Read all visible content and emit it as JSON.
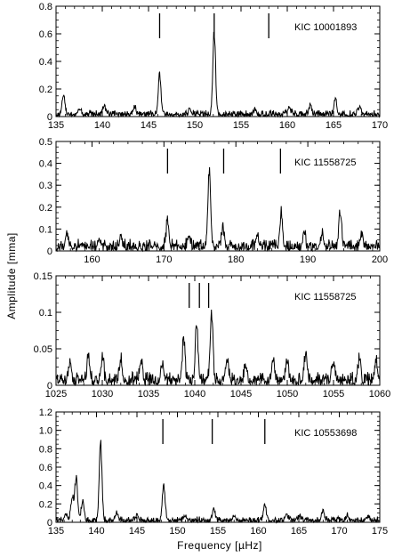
{
  "figure": {
    "ylabel": "Amplitude   [mma]",
    "xlabel": "Frequency [µHz]"
  },
  "chart_data": [
    {
      "type": "line",
      "label": "KIC 10001893",
      "xlim": [
        135,
        170
      ],
      "ylim": [
        0,
        0.8
      ],
      "xticks": [
        135,
        140,
        145,
        150,
        155,
        160,
        165,
        170
      ],
      "yticks": [
        0,
        0.2,
        0.4,
        0.6,
        0.8
      ],
      "ytick_labels": [
        "0",
        "0.2",
        "0.4",
        "0.6",
        "0.8"
      ],
      "markers": [
        146.2,
        152.1,
        158.0
      ],
      "peaks": [
        [
          135.8,
          0.15
        ],
        [
          137.5,
          0.05
        ],
        [
          140.2,
          0.07
        ],
        [
          143.5,
          0.05
        ],
        [
          146.2,
          0.28
        ],
        [
          149.5,
          0.04
        ],
        [
          152.1,
          0.58
        ],
        [
          156.5,
          0.04
        ],
        [
          160.2,
          0.06
        ],
        [
          162.5,
          0.06
        ],
        [
          165.2,
          0.11
        ],
        [
          167.8,
          0.05
        ]
      ],
      "noise": 0.03
    },
    {
      "type": "line",
      "label": "KIC 11558725",
      "xlim": [
        155,
        200
      ],
      "ylim": [
        0,
        0.5
      ],
      "xticks": [
        160,
        170,
        180,
        190,
        200
      ],
      "yticks": [
        0,
        0.1,
        0.2,
        0.3,
        0.4,
        0.5
      ],
      "ytick_labels": [
        "0",
        "0.1",
        "0.2",
        "0.3",
        "0.4",
        "0.5"
      ],
      "markers": [
        170.5,
        178.3,
        186.2
      ],
      "peaks": [
        [
          156.5,
          0.07
        ],
        [
          161.0,
          0.04
        ],
        [
          164.0,
          0.05
        ],
        [
          170.5,
          0.12
        ],
        [
          173.5,
          0.05
        ],
        [
          176.3,
          0.34
        ],
        [
          178.2,
          0.09
        ],
        [
          183.0,
          0.05
        ],
        [
          186.3,
          0.14
        ],
        [
          189.5,
          0.06
        ],
        [
          192.0,
          0.06
        ],
        [
          194.5,
          0.16
        ],
        [
          197.5,
          0.06
        ]
      ],
      "noise": 0.035
    },
    {
      "type": "line",
      "label": "KIC 11558725",
      "xlim": [
        1025,
        1060
      ],
      "ylim": [
        0,
        0.15
      ],
      "xticks": [
        1025,
        1030,
        1035,
        1040,
        1045,
        1050,
        1055,
        1060
      ],
      "yticks": [
        0,
        0.05,
        0.1,
        0.15
      ],
      "ytick_labels": [
        "0",
        "0.05",
        "0.1",
        "0.15"
      ],
      "markers": [
        1039.4,
        1040.5,
        1041.5
      ],
      "peaks": [
        [
          1026.5,
          0.028
        ],
        [
          1028.5,
          0.035
        ],
        [
          1030.0,
          0.03
        ],
        [
          1032.0,
          0.028
        ],
        [
          1034.2,
          0.03
        ],
        [
          1036.5,
          0.025
        ],
        [
          1038.8,
          0.055
        ],
        [
          1040.2,
          0.08
        ],
        [
          1041.8,
          0.092
        ],
        [
          1043.5,
          0.03
        ],
        [
          1045.5,
          0.025
        ],
        [
          1048.5,
          0.03
        ],
        [
          1050.0,
          0.028
        ],
        [
          1052.0,
          0.04
        ],
        [
          1055.0,
          0.028
        ],
        [
          1057.8,
          0.032
        ],
        [
          1059.6,
          0.025
        ]
      ],
      "noise": 0.012
    },
    {
      "type": "line",
      "label": "KIC 10553698",
      "xlim": [
        135,
        175
      ],
      "ylim": [
        0,
        1.2
      ],
      "xticks": [
        135,
        140,
        145,
        150,
        155,
        160,
        165,
        170,
        175
      ],
      "yticks": [
        0,
        0.2,
        0.4,
        0.6,
        0.8,
        1.0,
        1.2
      ],
      "ytick_labels": [
        "0",
        "0.2",
        "0.4",
        "0.6",
        "0.8",
        "1.0",
        "1.2"
      ],
      "markers": [
        148.2,
        154.3,
        160.8
      ],
      "peaks": [
        [
          136.2,
          0.08
        ],
        [
          137.0,
          0.25
        ],
        [
          137.5,
          0.47
        ],
        [
          138.3,
          0.22
        ],
        [
          140.5,
          0.82
        ],
        [
          142.5,
          0.08
        ],
        [
          145.0,
          0.06
        ],
        [
          148.3,
          0.41
        ],
        [
          151.0,
          0.05
        ],
        [
          154.5,
          0.12
        ],
        [
          157.0,
          0.05
        ],
        [
          160.8,
          0.18
        ],
        [
          163.5,
          0.06
        ],
        [
          165.0,
          0.05
        ],
        [
          168.0,
          0.1
        ],
        [
          171.0,
          0.05
        ],
        [
          173.5,
          0.04
        ]
      ],
      "noise": 0.04
    }
  ]
}
